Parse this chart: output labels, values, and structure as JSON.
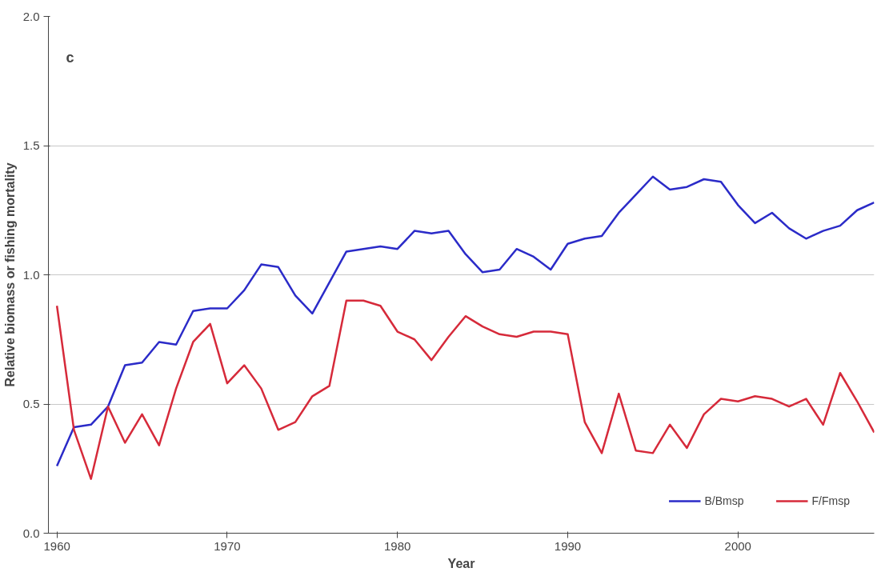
{
  "chart_data": {
    "type": "line",
    "xlabel": "Year",
    "ylabel": "Relative biomass or fishing mortality",
    "annotations": [
      "c"
    ],
    "x": [
      1960,
      1961,
      1962,
      1963,
      1964,
      1965,
      1966,
      1967,
      1968,
      1969,
      1970,
      1971,
      1972,
      1973,
      1974,
      1975,
      1976,
      1977,
      1978,
      1979,
      1980,
      1981,
      1982,
      1983,
      1984,
      1985,
      1986,
      1987,
      1988,
      1989,
      1990,
      1991,
      1992,
      1993,
      1994,
      1995,
      1996,
      1997,
      1998,
      1999,
      2000,
      2001,
      2002,
      2003,
      2004,
      2005,
      2006,
      2007,
      2008
    ],
    "series": [
      {
        "name": "B/Bmsp",
        "color": "#2b2bc8",
        "values": [
          0.26,
          0.41,
          0.42,
          0.49,
          0.65,
          0.66,
          0.74,
          0.73,
          0.86,
          0.87,
          0.87,
          0.94,
          1.04,
          1.03,
          0.92,
          0.85,
          0.97,
          1.09,
          1.1,
          1.11,
          1.1,
          1.17,
          1.16,
          1.17,
          1.08,
          1.01,
          1.02,
          1.1,
          1.07,
          1.02,
          1.12,
          1.14,
          1.15,
          1.24,
          1.31,
          1.38,
          1.33,
          1.34,
          1.37,
          1.36,
          1.27,
          1.2,
          1.24,
          1.18,
          1.14,
          1.17,
          1.19,
          1.25,
          1.28
        ]
      },
      {
        "name": "F/Fmsp",
        "color": "#d62a3a",
        "values": [
          0.88,
          0.4,
          0.21,
          0.49,
          0.35,
          0.46,
          0.34,
          0.56,
          0.74,
          0.81,
          0.58,
          0.65,
          0.56,
          0.4,
          0.43,
          0.53,
          0.57,
          0.9,
          0.9,
          0.88,
          0.78,
          0.75,
          0.67,
          0.76,
          0.84,
          0.8,
          0.77,
          0.76,
          0.78,
          0.78,
          0.77,
          0.43,
          0.31,
          0.54,
          0.32,
          0.31,
          0.42,
          0.33,
          0.46,
          0.52,
          0.51,
          0.53,
          0.52,
          0.49,
          0.52,
          0.42,
          0.62,
          0.51,
          0.39
        ]
      }
    ],
    "xlim": [
      1959.5,
      2008
    ],
    "xticks": [
      1960,
      1970,
      1980,
      1990,
      2000
    ],
    "ylim": [
      0,
      2
    ],
    "yticks": [
      {
        "value": 0,
        "label": "0.0"
      },
      {
        "value": 0.5,
        "label": "0.5"
      },
      {
        "value": 1,
        "label": "1.0"
      },
      {
        "value": 1.5,
        "label": "1.5"
      },
      {
        "value": 2,
        "label": "2.0"
      }
    ],
    "grid": "y",
    "legend": "bottom right",
    "marker": "none",
    "line_style": "solid"
  }
}
